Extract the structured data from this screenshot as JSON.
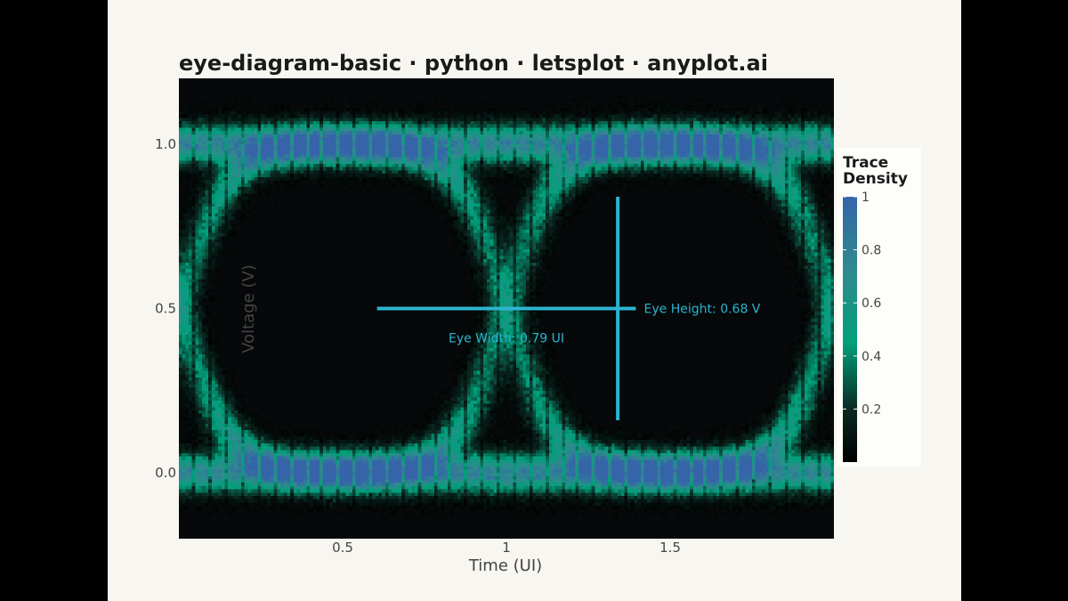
{
  "chart_data": {
    "type": "heatmap",
    "title": "eye-diagram-basic · python · letsplot · anyplot.ai",
    "xlabel": "Time (UI)",
    "ylabel": "Voltage (V)",
    "xlim": [
      0,
      2
    ],
    "ylim": [
      -0.2,
      1.2
    ],
    "x_ticks": [
      {
        "value": 0.5,
        "label": "0.5"
      },
      {
        "value": 1.0,
        "label": "1"
      },
      {
        "value": 1.5,
        "label": "1.5"
      }
    ],
    "y_ticks": [
      {
        "value": 0.0,
        "label": "0.0"
      },
      {
        "value": 0.5,
        "label": "0.5"
      },
      {
        "value": 1.0,
        "label": "1.0"
      }
    ],
    "grid": false,
    "background_color": "#06080a",
    "colorscale": [
      "#000000",
      "#0a2a22",
      "#00a07a",
      "#2e8c8c",
      "#3565a8"
    ],
    "legend": {
      "title_lines": [
        "Trace",
        "Density"
      ],
      "placement": "right",
      "range": [
        0,
        1
      ],
      "ticks": [
        {
          "value": 1.0,
          "label": "1"
        },
        {
          "value": 0.8,
          "label": "0.8"
        },
        {
          "value": 0.6,
          "label": "0.6"
        },
        {
          "value": 0.4,
          "label": "0.4"
        },
        {
          "value": 0.2,
          "label": "0.2"
        }
      ]
    },
    "signal": {
      "low_level": 0.0,
      "high_level": 1.0,
      "transition_times": [
        0.0,
        1.0,
        2.0
      ]
    },
    "annotations": {
      "color": "#2bb5cf",
      "eye_width": {
        "x_start": 0.605,
        "x_end": 1.395,
        "y": 0.5,
        "label": "Eye Width: 0.79 UI",
        "label_x": 1.0,
        "label_y": 0.41
      },
      "eye_height": {
        "x": 1.34,
        "y_start": 0.16,
        "y_end": 0.84,
        "label": "Eye Height: 0.68 V",
        "label_x": 1.42,
        "label_y": 0.5
      }
    }
  }
}
